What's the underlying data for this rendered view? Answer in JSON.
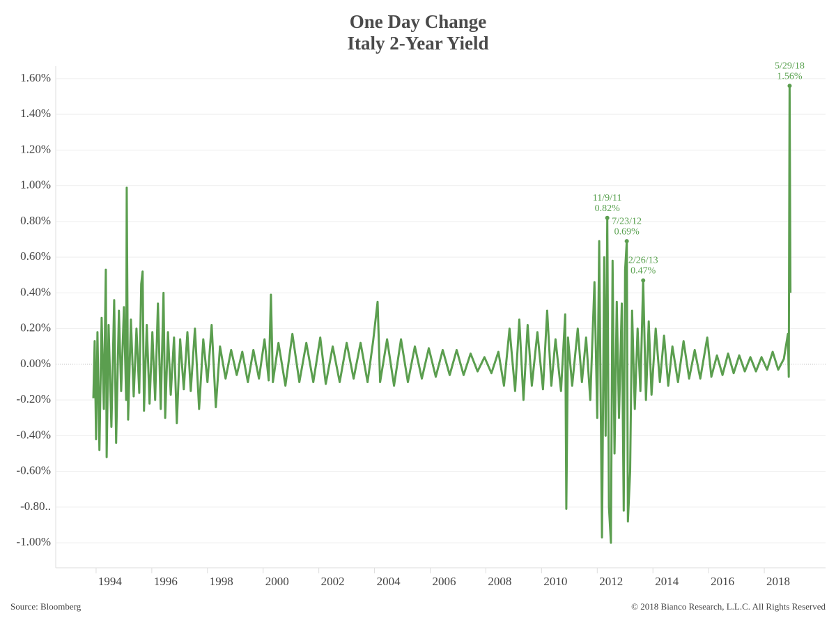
{
  "chart_data": {
    "type": "line",
    "title": "One Day Change",
    "subtitle": "Italy 2-Year Yield",
    "source": "Source: Bloomberg",
    "copyright": "© 2018 Bianco Research, L.L.C. All Rights Reserved",
    "xlim": [
      1992.05,
      2019.7
    ],
    "xticks": [
      1994,
      1996,
      1998,
      2000,
      2002,
      2004,
      2006,
      2008,
      2010,
      2012,
      2014,
      2016,
      2018
    ],
    "ylim": [
      -1.14,
      1.67
    ],
    "yticks": [
      {
        "value": -1.0,
        "label": "-1.00%"
      },
      {
        "value": -0.8,
        "label": "-0.80.."
      },
      {
        "value": -0.6,
        "label": "-0.60%"
      },
      {
        "value": -0.4,
        "label": "-0.40%"
      },
      {
        "value": -0.2,
        "label": "-0.20%"
      },
      {
        "value": 0,
        "label": "0.00%"
      },
      {
        "value": 0.2,
        "label": "0.20%"
      },
      {
        "value": 0.4,
        "label": "0.40%"
      },
      {
        "value": 0.6,
        "label": "0.60%"
      },
      {
        "value": 0.8,
        "label": "0.80%"
      },
      {
        "value": 1.0,
        "label": "1.00%"
      },
      {
        "value": 1.2,
        "label": "1.20%"
      },
      {
        "value": 1.4,
        "label": "1.40%"
      },
      {
        "value": 1.6,
        "label": "1.60%"
      }
    ],
    "grid": true,
    "x": [
      1993.4,
      1993.45,
      1993.5,
      1993.55,
      1993.62,
      1993.7,
      1993.78,
      1993.85,
      1993.88,
      1993.95,
      1994.05,
      1994.15,
      1994.22,
      1994.32,
      1994.4,
      1994.5,
      1994.58,
      1994.6,
      1994.65,
      1994.75,
      1994.85,
      1994.95,
      1995.05,
      1995.12,
      1995.17,
      1995.22,
      1995.32,
      1995.42,
      1995.52,
      1995.62,
      1995.72,
      1995.82,
      1995.92,
      1995.98,
      1996.08,
      1996.18,
      1996.3,
      1996.4,
      1996.52,
      1996.65,
      1996.78,
      1996.9,
      1997.05,
      1997.2,
      1997.35,
      1997.5,
      1997.65,
      1997.8,
      1997.95,
      1998.15,
      1998.35,
      1998.55,
      1998.75,
      1998.95,
      1999.15,
      1999.35,
      1999.55,
      1999.7,
      1999.78,
      1999.85,
      2000.05,
      2000.3,
      2000.55,
      2000.8,
      2001.05,
      2001.3,
      2001.55,
      2001.75,
      2002.0,
      2002.25,
      2002.5,
      2002.75,
      2003.0,
      2003.25,
      2003.45,
      2003.61,
      2003.7,
      2003.95,
      2004.2,
      2004.45,
      2004.7,
      2004.95,
      2005.2,
      2005.45,
      2005.7,
      2005.95,
      2006.2,
      2006.45,
      2006.7,
      2006.95,
      2007.2,
      2007.45,
      2007.7,
      2007.95,
      2008.15,
      2008.35,
      2008.55,
      2008.7,
      2008.85,
      2009.0,
      2009.15,
      2009.35,
      2009.55,
      2009.7,
      2009.85,
      2010.0,
      2010.2,
      2010.35,
      2010.39,
      2010.45,
      2010.6,
      2010.8,
      2010.95,
      2011.1,
      2011.25,
      2011.4,
      2011.5,
      2011.57,
      2011.67,
      2011.75,
      2011.8,
      2011.86,
      2011.92,
      2011.99,
      2012.05,
      2012.12,
      2012.2,
      2012.28,
      2012.38,
      2012.45,
      2012.5,
      2012.56,
      2012.6,
      2012.68,
      2012.75,
      2012.85,
      2012.95,
      2013.05,
      2013.15,
      2013.25,
      2013.35,
      2013.45,
      2013.6,
      2013.75,
      2013.9,
      2014.05,
      2014.2,
      2014.4,
      2014.6,
      2014.8,
      2015.0,
      2015.2,
      2015.45,
      2015.6,
      2015.8,
      2016.0,
      2016.2,
      2016.4,
      2016.6,
      2016.8,
      2017.0,
      2017.2,
      2017.4,
      2017.6,
      2017.8,
      2018.0,
      2018.2,
      2018.35,
      2018.38,
      2018.41,
      2018.44
    ],
    "series": [
      {
        "name": "Italy 2-Year Yield",
        "color": "#5b9e4f",
        "values": [
          -0.19,
          0.13,
          -0.42,
          0.18,
          -0.48,
          0.26,
          -0.25,
          0.53,
          -0.52,
          0.22,
          -0.35,
          0.36,
          -0.44,
          0.3,
          -0.15,
          0.32,
          -0.2,
          0.99,
          -0.31,
          0.25,
          -0.18,
          0.2,
          -0.16,
          0.45,
          0.52,
          -0.26,
          0.22,
          -0.22,
          0.18,
          -0.2,
          0.34,
          -0.25,
          0.4,
          -0.3,
          0.18,
          -0.17,
          0.15,
          -0.33,
          0.14,
          -0.14,
          0.18,
          -0.15,
          0.2,
          -0.25,
          0.14,
          -0.1,
          0.22,
          -0.24,
          0.1,
          -0.08,
          0.08,
          -0.06,
          0.07,
          -0.1,
          0.08,
          -0.08,
          0.14,
          -0.09,
          0.39,
          -0.1,
          0.12,
          -0.12,
          0.17,
          -0.1,
          0.12,
          -0.1,
          0.15,
          -0.11,
          0.1,
          -0.1,
          0.12,
          -0.08,
          0.12,
          -0.1,
          0.13,
          0.35,
          -0.1,
          0.14,
          -0.12,
          0.14,
          -0.1,
          0.1,
          -0.08,
          0.09,
          -0.07,
          0.08,
          -0.06,
          0.08,
          -0.06,
          0.06,
          -0.04,
          0.04,
          -0.05,
          0.07,
          -0.12,
          0.2,
          -0.15,
          0.25,
          -0.2,
          0.22,
          -0.12,
          0.18,
          -0.14,
          0.3,
          -0.12,
          0.14,
          -0.15,
          0.28,
          -0.81,
          0.15,
          -0.12,
          0.2,
          -0.1,
          0.15,
          -0.2,
          0.46,
          -0.3,
          0.69,
          -0.97,
          0.6,
          -0.4,
          0.82,
          -0.8,
          -1.0,
          0.58,
          -0.5,
          0.35,
          -0.3,
          0.34,
          -0.82,
          0.53,
          0.69,
          -0.88,
          -0.6,
          0.3,
          -0.25,
          0.2,
          -0.15,
          0.47,
          -0.2,
          0.24,
          -0.17,
          0.2,
          -0.1,
          0.16,
          -0.12,
          0.1,
          -0.1,
          0.13,
          -0.08,
          0.08,
          -0.08,
          0.15,
          -0.07,
          0.05,
          -0.06,
          0.06,
          -0.05,
          0.05,
          -0.04,
          0.04,
          -0.04,
          0.04,
          -0.03,
          0.07,
          -0.03,
          0.03,
          0.17,
          -0.07,
          1.56,
          0.4
        ]
      }
    ],
    "annotations": [
      {
        "text": "11/9/11",
        "x": 2011.86,
        "value": 0.82,
        "value_label": "0.82%"
      },
      {
        "text": "7/23/12",
        "x": 2012.56,
        "value": 0.69,
        "value_label": "0.69%"
      },
      {
        "text": "2/26/13",
        "x": 2013.15,
        "value": 0.47,
        "value_label": "0.47%"
      },
      {
        "text": "5/29/18",
        "x": 2018.41,
        "value": 1.56,
        "value_label": "1.56%"
      }
    ]
  }
}
